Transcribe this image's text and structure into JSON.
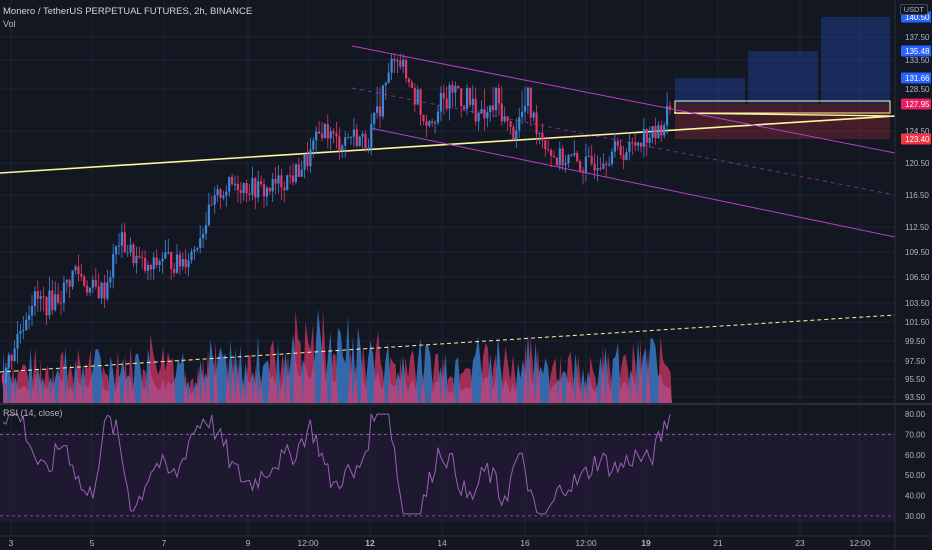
{
  "header": {
    "title": "Monero / TetherUS PERPETUAL FUTURES, 2h, BINANCE",
    "volume_label": "Vol",
    "currency": "USDT"
  },
  "rsi": {
    "title": "RSI (14, close)",
    "axis_ticks": [
      "80.00",
      "70.00",
      "60.00",
      "50.00",
      "40.00",
      "30.00"
    ],
    "overbought": 70,
    "oversold": 30,
    "ylim": [
      27,
      82
    ],
    "color": "#9c5fb8"
  },
  "price_labels": [
    {
      "text": "140.50",
      "bg": "#2962ff",
      "fg": "#ffffff"
    },
    {
      "text": "135.48",
      "bg": "#2962ff",
      "fg": "#ffffff"
    },
    {
      "text": "131.66",
      "bg": "#2962ff",
      "fg": "#ffffff"
    },
    {
      "text": "127.95",
      "bg": "#e91e63",
      "fg": "#ffffff"
    },
    {
      "text": "123.40",
      "bg": "#f23645",
      "fg": "#ffffff"
    }
  ],
  "chart_data": {
    "type": "candlestick",
    "title": "Monero / TetherUS PERPETUAL FUTURES, 2h, BINANCE",
    "ylim": [
      93.5,
      141.5
    ],
    "y_ticks": [
      137.5,
      133.5,
      128.5,
      124.5,
      120.5,
      116.5,
      112.5,
      109.5,
      106.5,
      103.5,
      101.5,
      99.5,
      97.5,
      95.5,
      93.5
    ],
    "x_ticks": [
      "3",
      "5",
      "7",
      "9",
      "12:00",
      "12",
      "14",
      "16",
      "12:00",
      "19",
      "21",
      "23",
      "12:00"
    ],
    "grid": true,
    "colors": {
      "up": "#3f86d8",
      "down": "#e0386a",
      "trendline": "#fff59d",
      "channel": "#b93ecb"
    },
    "price_points": [
      96,
      100,
      104,
      103.5,
      104.5,
      107.5,
      105,
      105,
      111,
      109,
      107,
      109,
      108,
      109.5,
      113.5,
      117,
      118,
      117.5,
      117,
      118,
      119,
      121,
      125,
      123,
      124,
      123,
      128,
      135,
      130,
      126,
      127,
      129,
      128,
      126,
      128,
      124,
      128,
      124,
      121,
      121,
      120,
      121,
      122,
      122,
      124,
      124,
      128
    ],
    "volume_points": [
      55,
      30,
      42,
      35,
      50,
      38,
      45,
      35,
      50,
      40,
      55,
      45,
      48,
      35,
      48,
      45,
      45,
      42,
      55,
      45,
      75,
      60,
      80,
      55,
      65,
      50,
      55,
      40,
      50,
      45,
      45,
      42,
      55,
      48,
      55,
      40,
      50,
      42,
      45,
      40,
      45,
      40,
      45,
      38,
      55,
      48,
      40
    ],
    "position": {
      "entry": 127.95,
      "stop": 123.4,
      "targets": [
        131.66,
        135.48,
        140.5
      ]
    }
  }
}
